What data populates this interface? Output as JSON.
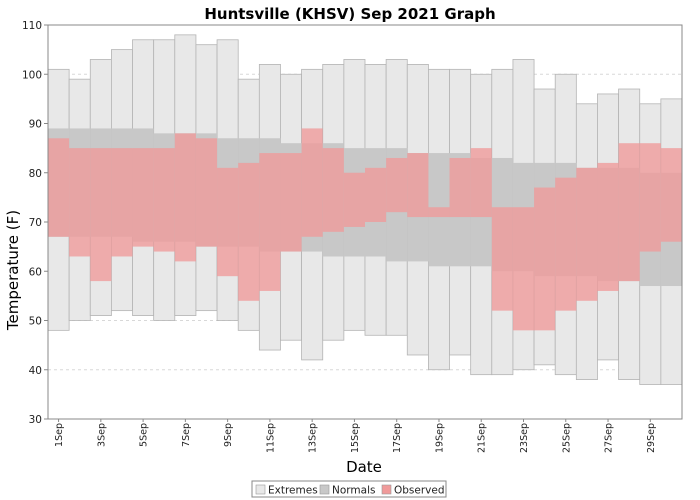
{
  "chart_data": {
    "type": "bar",
    "title": "Huntsville (KHSV) Sep 2021 Graph",
    "xlabel": "Date",
    "ylabel": "Temperature (F)",
    "ylim": [
      30,
      110
    ],
    "yticks": [
      30,
      40,
      50,
      60,
      70,
      80,
      90,
      100,
      110
    ],
    "grid": "horizontal dashed",
    "legend_position": "bottom",
    "categories": [
      "1Sep",
      "2Sep",
      "3Sep",
      "4Sep",
      "5Sep",
      "6Sep",
      "7Sep",
      "8Sep",
      "9Sep",
      "10Sep",
      "11Sep",
      "12Sep",
      "13Sep",
      "14Sep",
      "15Sep",
      "16Sep",
      "17Sep",
      "18Sep",
      "19Sep",
      "20Sep",
      "21Sep",
      "22Sep",
      "23Sep",
      "24Sep",
      "25Sep",
      "26Sep",
      "27Sep",
      "28Sep",
      "29Sep",
      "30Sep"
    ],
    "xtick_labels": [
      "1Sep",
      "3Sep",
      "5Sep",
      "7Sep",
      "9Sep",
      "11Sep",
      "13Sep",
      "15Sep",
      "17Sep",
      "19Sep",
      "21Sep",
      "23Sep",
      "25Sep",
      "27Sep",
      "29Sep"
    ],
    "series": [
      {
        "name": "Extremes",
        "color": "#e8e8e8",
        "low": [
          48,
          50,
          51,
          52,
          51,
          50,
          51,
          52,
          50,
          48,
          44,
          46,
          42,
          46,
          48,
          47,
          47,
          43,
          40,
          43,
          39,
          39,
          40,
          41,
          39,
          38,
          42,
          38,
          37,
          37
        ],
        "high": [
          101,
          99,
          103,
          105,
          107,
          107,
          108,
          106,
          107,
          99,
          102,
          100,
          101,
          102,
          103,
          102,
          103,
          102,
          101,
          101,
          100,
          101,
          103,
          97,
          100,
          94,
          96,
          97,
          94,
          95
        ]
      },
      {
        "name": "Normals",
        "color": "#c8c8c8",
        "low": [
          67,
          67,
          67,
          67,
          66,
          66,
          66,
          65,
          65,
          65,
          64,
          64,
          64,
          63,
          63,
          63,
          62,
          62,
          61,
          61,
          61,
          60,
          60,
          59,
          59,
          59,
          58,
          58,
          57,
          57
        ],
        "high": [
          89,
          89,
          89,
          89,
          89,
          88,
          88,
          88,
          87,
          87,
          87,
          86,
          86,
          86,
          85,
          85,
          85,
          84,
          84,
          84,
          83,
          83,
          82,
          82,
          82,
          81,
          81,
          81,
          80,
          80
        ]
      },
      {
        "name": "Observed",
        "color": "#f09a9a",
        "low": [
          67,
          63,
          58,
          63,
          65,
          64,
          62,
          65,
          59,
          54,
          56,
          64,
          67,
          68,
          69,
          70,
          72,
          71,
          71,
          71,
          71,
          52,
          48,
          48,
          52,
          54,
          56,
          58,
          64,
          66
        ],
        "high": [
          87,
          85,
          85,
          85,
          85,
          85,
          88,
          87,
          81,
          82,
          84,
          84,
          89,
          85,
          80,
          81,
          83,
          84,
          73,
          83,
          85,
          73,
          73,
          77,
          79,
          81,
          82,
          86,
          86,
          85
        ]
      }
    ]
  }
}
